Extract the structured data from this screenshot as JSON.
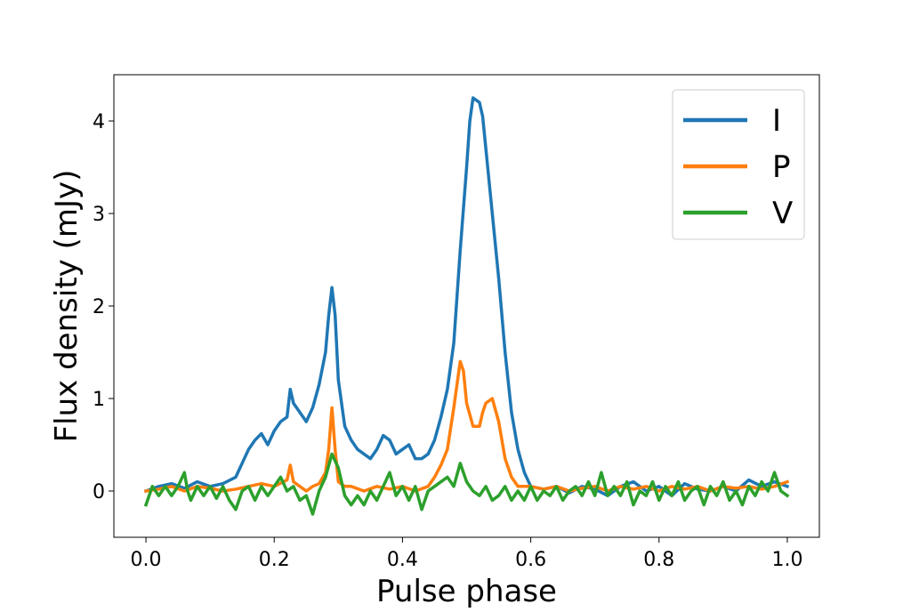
{
  "chart_data": {
    "type": "line",
    "title": "",
    "xlabel": "Pulse phase",
    "ylabel": "Flux density (mJy)",
    "xlim": [
      -0.05,
      1.05
    ],
    "ylim": [
      -0.5,
      4.5
    ],
    "xticks": [
      0.0,
      0.2,
      0.4,
      0.6,
      0.8,
      1.0
    ],
    "xtick_labels": [
      "0.0",
      "0.2",
      "0.4",
      "0.6",
      "0.8",
      "1.0"
    ],
    "yticks": [
      0,
      1,
      2,
      3,
      4
    ],
    "ytick_labels": [
      "0",
      "1",
      "2",
      "3",
      "4"
    ],
    "grid": false,
    "legend": {
      "position": "top-right"
    },
    "series": [
      {
        "name": "I",
        "color": "#1f77b4",
        "points": [
          [
            0.0,
            0.0
          ],
          [
            0.02,
            0.05
          ],
          [
            0.04,
            0.08
          ],
          [
            0.06,
            0.03
          ],
          [
            0.08,
            0.1
          ],
          [
            0.1,
            0.05
          ],
          [
            0.12,
            0.08
          ],
          [
            0.14,
            0.15
          ],
          [
            0.15,
            0.3
          ],
          [
            0.16,
            0.45
          ],
          [
            0.17,
            0.55
          ],
          [
            0.18,
            0.62
          ],
          [
            0.19,
            0.5
          ],
          [
            0.2,
            0.65
          ],
          [
            0.21,
            0.75
          ],
          [
            0.22,
            0.8
          ],
          [
            0.225,
            1.1
          ],
          [
            0.23,
            0.95
          ],
          [
            0.24,
            0.85
          ],
          [
            0.25,
            0.75
          ],
          [
            0.26,
            0.9
          ],
          [
            0.27,
            1.15
          ],
          [
            0.28,
            1.5
          ],
          [
            0.285,
            1.9
          ],
          [
            0.29,
            2.2
          ],
          [
            0.295,
            1.9
          ],
          [
            0.3,
            1.2
          ],
          [
            0.31,
            0.7
          ],
          [
            0.32,
            0.55
          ],
          [
            0.33,
            0.45
          ],
          [
            0.34,
            0.4
          ],
          [
            0.35,
            0.35
          ],
          [
            0.36,
            0.45
          ],
          [
            0.37,
            0.6
          ],
          [
            0.38,
            0.55
          ],
          [
            0.39,
            0.4
          ],
          [
            0.4,
            0.45
          ],
          [
            0.41,
            0.5
          ],
          [
            0.42,
            0.35
          ],
          [
            0.43,
            0.35
          ],
          [
            0.44,
            0.4
          ],
          [
            0.45,
            0.55
          ],
          [
            0.46,
            0.8
          ],
          [
            0.47,
            1.1
          ],
          [
            0.48,
            1.6
          ],
          [
            0.49,
            2.6
          ],
          [
            0.5,
            3.5
          ],
          [
            0.505,
            4.0
          ],
          [
            0.51,
            4.25
          ],
          [
            0.52,
            4.2
          ],
          [
            0.525,
            4.05
          ],
          [
            0.53,
            3.7
          ],
          [
            0.54,
            3.0
          ],
          [
            0.55,
            2.3
          ],
          [
            0.56,
            1.5
          ],
          [
            0.57,
            0.85
          ],
          [
            0.58,
            0.45
          ],
          [
            0.59,
            0.2
          ],
          [
            0.6,
            0.05
          ],
          [
            0.62,
            0.02
          ],
          [
            0.64,
            0.05
          ],
          [
            0.66,
            -0.02
          ],
          [
            0.68,
            0.05
          ],
          [
            0.7,
            0.02
          ],
          [
            0.72,
            -0.05
          ],
          [
            0.74,
            0.05
          ],
          [
            0.76,
            0.1
          ],
          [
            0.78,
            0.0
          ],
          [
            0.8,
            0.05
          ],
          [
            0.82,
            -0.05
          ],
          [
            0.84,
            0.08
          ],
          [
            0.86,
            0.02
          ],
          [
            0.88,
            0.0
          ],
          [
            0.9,
            0.05
          ],
          [
            0.92,
            0.0
          ],
          [
            0.94,
            0.12
          ],
          [
            0.96,
            0.05
          ],
          [
            0.98,
            0.1
          ],
          [
            1.0,
            0.05
          ]
        ]
      },
      {
        "name": "P",
        "color": "#ff7f0e",
        "points": [
          [
            0.0,
            0.0
          ],
          [
            0.02,
            0.02
          ],
          [
            0.04,
            0.05
          ],
          [
            0.06,
            0.0
          ],
          [
            0.08,
            0.05
          ],
          [
            0.1,
            0.03
          ],
          [
            0.12,
            0.0
          ],
          [
            0.14,
            0.02
          ],
          [
            0.16,
            0.05
          ],
          [
            0.18,
            0.08
          ],
          [
            0.2,
            0.05
          ],
          [
            0.22,
            0.12
          ],
          [
            0.225,
            0.28
          ],
          [
            0.23,
            0.1
          ],
          [
            0.24,
            0.05
          ],
          [
            0.25,
            0.0
          ],
          [
            0.26,
            0.05
          ],
          [
            0.27,
            0.08
          ],
          [
            0.28,
            0.2
          ],
          [
            0.285,
            0.45
          ],
          [
            0.29,
            0.9
          ],
          [
            0.295,
            0.45
          ],
          [
            0.3,
            0.1
          ],
          [
            0.31,
            0.05
          ],
          [
            0.32,
            0.05
          ],
          [
            0.34,
            0.0
          ],
          [
            0.36,
            0.05
          ],
          [
            0.38,
            0.02
          ],
          [
            0.4,
            0.05
          ],
          [
            0.42,
            0.0
          ],
          [
            0.44,
            0.05
          ],
          [
            0.45,
            0.15
          ],
          [
            0.46,
            0.28
          ],
          [
            0.47,
            0.45
          ],
          [
            0.48,
            0.9
          ],
          [
            0.49,
            1.4
          ],
          [
            0.495,
            1.3
          ],
          [
            0.5,
            0.95
          ],
          [
            0.51,
            0.7
          ],
          [
            0.52,
            0.7
          ],
          [
            0.525,
            0.85
          ],
          [
            0.53,
            0.95
          ],
          [
            0.54,
            1.0
          ],
          [
            0.55,
            0.75
          ],
          [
            0.56,
            0.35
          ],
          [
            0.57,
            0.15
          ],
          [
            0.58,
            0.05
          ],
          [
            0.6,
            0.05
          ],
          [
            0.62,
            0.02
          ],
          [
            0.64,
            0.05
          ],
          [
            0.66,
            0.0
          ],
          [
            0.68,
            0.03
          ],
          [
            0.7,
            0.05
          ],
          [
            0.72,
            0.0
          ],
          [
            0.74,
            0.05
          ],
          [
            0.76,
            0.02
          ],
          [
            0.78,
            0.05
          ],
          [
            0.8,
            0.0
          ],
          [
            0.82,
            0.05
          ],
          [
            0.84,
            0.02
          ],
          [
            0.86,
            0.05
          ],
          [
            0.88,
            0.0
          ],
          [
            0.9,
            0.05
          ],
          [
            0.92,
            0.03
          ],
          [
            0.94,
            0.05
          ],
          [
            0.96,
            0.02
          ],
          [
            0.98,
            0.05
          ],
          [
            1.0,
            0.1
          ]
        ]
      },
      {
        "name": "V",
        "color": "#2ca02c",
        "points": [
          [
            0.0,
            -0.15
          ],
          [
            0.01,
            0.05
          ],
          [
            0.02,
            -0.05
          ],
          [
            0.03,
            0.05
          ],
          [
            0.04,
            -0.05
          ],
          [
            0.05,
            0.05
          ],
          [
            0.06,
            0.2
          ],
          [
            0.065,
            0.0
          ],
          [
            0.07,
            -0.1
          ],
          [
            0.08,
            0.05
          ],
          [
            0.09,
            -0.05
          ],
          [
            0.1,
            0.05
          ],
          [
            0.11,
            -0.08
          ],
          [
            0.12,
            0.05
          ],
          [
            0.13,
            -0.1
          ],
          [
            0.14,
            -0.2
          ],
          [
            0.15,
            0.0
          ],
          [
            0.16,
            0.05
          ],
          [
            0.17,
            -0.1
          ],
          [
            0.18,
            0.05
          ],
          [
            0.19,
            -0.05
          ],
          [
            0.2,
            0.05
          ],
          [
            0.21,
            0.15
          ],
          [
            0.22,
            0.0
          ],
          [
            0.23,
            0.05
          ],
          [
            0.24,
            -0.1
          ],
          [
            0.25,
            -0.05
          ],
          [
            0.26,
            -0.25
          ],
          [
            0.27,
            0.0
          ],
          [
            0.28,
            0.15
          ],
          [
            0.29,
            0.4
          ],
          [
            0.3,
            0.25
          ],
          [
            0.31,
            -0.05
          ],
          [
            0.32,
            -0.15
          ],
          [
            0.33,
            -0.05
          ],
          [
            0.34,
            -0.15
          ],
          [
            0.35,
            0.0
          ],
          [
            0.36,
            -0.1
          ],
          [
            0.37,
            0.05
          ],
          [
            0.38,
            0.2
          ],
          [
            0.39,
            -0.05
          ],
          [
            0.4,
            0.05
          ],
          [
            0.41,
            -0.1
          ],
          [
            0.42,
            0.05
          ],
          [
            0.43,
            -0.2
          ],
          [
            0.44,
            0.0
          ],
          [
            0.45,
            0.05
          ],
          [
            0.46,
            0.1
          ],
          [
            0.47,
            0.15
          ],
          [
            0.48,
            0.05
          ],
          [
            0.49,
            0.3
          ],
          [
            0.5,
            0.1
          ],
          [
            0.51,
            0.0
          ],
          [
            0.52,
            -0.05
          ],
          [
            0.53,
            0.05
          ],
          [
            0.54,
            -0.1
          ],
          [
            0.55,
            -0.05
          ],
          [
            0.56,
            0.05
          ],
          [
            0.57,
            -0.1
          ],
          [
            0.58,
            0.0
          ],
          [
            0.59,
            -0.1
          ],
          [
            0.6,
            0.05
          ],
          [
            0.61,
            -0.1
          ],
          [
            0.62,
            0.0
          ],
          [
            0.63,
            -0.05
          ],
          [
            0.64,
            0.05
          ],
          [
            0.65,
            -0.1
          ],
          [
            0.66,
            0.0
          ],
          [
            0.67,
            0.05
          ],
          [
            0.68,
            -0.05
          ],
          [
            0.69,
            0.1
          ],
          [
            0.7,
            -0.05
          ],
          [
            0.71,
            0.2
          ],
          [
            0.72,
            -0.05
          ],
          [
            0.73,
            0.05
          ],
          [
            0.74,
            -0.05
          ],
          [
            0.75,
            0.1
          ],
          [
            0.76,
            -0.15
          ],
          [
            0.77,
            0.0
          ],
          [
            0.78,
            -0.05
          ],
          [
            0.79,
            0.1
          ],
          [
            0.8,
            -0.1
          ],
          [
            0.81,
            0.05
          ],
          [
            0.82,
            -0.05
          ],
          [
            0.83,
            0.1
          ],
          [
            0.84,
            -0.1
          ],
          [
            0.85,
            0.0
          ],
          [
            0.86,
            0.05
          ],
          [
            0.87,
            -0.15
          ],
          [
            0.88,
            0.05
          ],
          [
            0.89,
            -0.05
          ],
          [
            0.9,
            0.1
          ],
          [
            0.91,
            -0.1
          ],
          [
            0.92,
            0.0
          ],
          [
            0.93,
            -0.15
          ],
          [
            0.94,
            0.05
          ],
          [
            0.95,
            -0.05
          ],
          [
            0.96,
            0.1
          ],
          [
            0.97,
            0.0
          ],
          [
            0.98,
            0.2
          ],
          [
            0.99,
            0.0
          ],
          [
            1.0,
            -0.05
          ]
        ]
      }
    ]
  }
}
